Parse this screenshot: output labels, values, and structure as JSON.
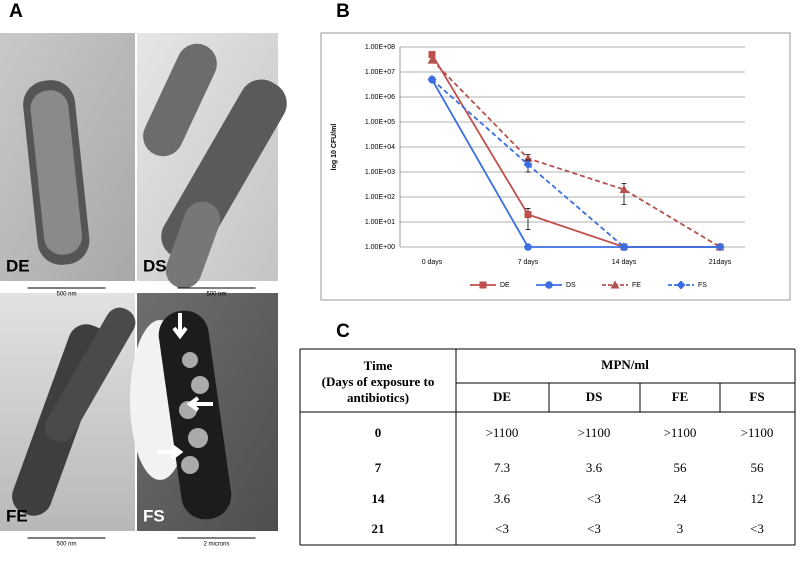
{
  "panel_labels": [
    "A",
    "B",
    "C"
  ],
  "micrographs": [
    {
      "label": "DE",
      "scale": "500 nm"
    },
    {
      "label": "DS",
      "scale": "500 nm"
    },
    {
      "label": "FE",
      "scale": "500 nm"
    },
    {
      "label": "FS",
      "scale": "2 microns"
    }
  ],
  "chart_data": {
    "type": "line",
    "y_label": "log 10 CFU/ml",
    "log_y": true,
    "grid": true,
    "categories": [
      "0 days",
      "7 days",
      "14 days",
      "21days"
    ],
    "ylim": [
      1,
      100000000
    ],
    "yticks": [
      {
        "value": 1,
        "label": "1.00E+00"
      },
      {
        "value": 10,
        "label": "1.00E+01"
      },
      {
        "value": 100,
        "label": "1.00E+02"
      },
      {
        "value": 1000,
        "label": "1.00E+03"
      },
      {
        "value": 10000,
        "label": "1.00E+04"
      },
      {
        "value": 100000,
        "label": "1.00E+05"
      },
      {
        "value": 1000000,
        "label": "1.00E+06"
      },
      {
        "value": 10000000,
        "label": "1.00E+07"
      },
      {
        "value": 100000000,
        "label": "1.00E+08"
      }
    ],
    "series": [
      {
        "name": "DE",
        "color": "#c0504d",
        "dash": false,
        "marker": "square",
        "values": [
          50000000,
          20,
          1,
          1
        ],
        "errors": [
          null,
          15,
          null,
          null
        ]
      },
      {
        "name": "DS",
        "color": "#3b6fe0",
        "dash": false,
        "marker": "circle",
        "values": [
          5000000,
          1,
          1,
          1
        ],
        "errors": [
          null,
          null,
          null,
          null
        ]
      },
      {
        "name": "FE",
        "color": "#b5524f",
        "dash": true,
        "marker": "triangle",
        "values": [
          30000000,
          3500,
          200,
          1
        ],
        "errors": [
          null,
          1500,
          150,
          null
        ]
      },
      {
        "name": "FS",
        "color": "#3b6fe0",
        "dash": true,
        "marker": "diamond",
        "values": [
          5000000,
          2000,
          1,
          1
        ],
        "errors": [
          null,
          1000,
          null,
          null
        ]
      }
    ]
  },
  "table": {
    "time_header": [
      "Time",
      "(Days of exposure to",
      "antibiotics)"
    ],
    "group_header": "MPN/ml",
    "columns": [
      "DE",
      "DS",
      "FE",
      "FS"
    ],
    "rows": [
      [
        "0",
        ">1100",
        ">1100",
        ">1100",
        ">1100"
      ],
      [
        "7",
        "7.3",
        "3.6",
        "56",
        "56"
      ],
      [
        "14",
        "3.6",
        "<3",
        "24",
        "12"
      ],
      [
        "21",
        "<3",
        "<3",
        "3",
        "<3"
      ]
    ]
  }
}
